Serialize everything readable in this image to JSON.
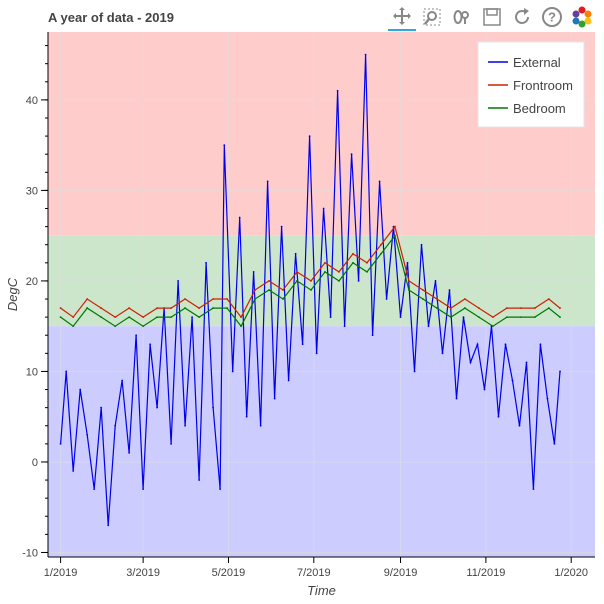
{
  "title": "A year of data - 2019",
  "toolbar": {
    "tools": [
      {
        "name": "pan-tool",
        "icon": "move-arrows-icon",
        "active": true
      },
      {
        "name": "box-zoom-tool",
        "icon": "box-zoom-icon",
        "active": false
      },
      {
        "name": "wheel-zoom-tool",
        "icon": "wheel-zoom-icon",
        "active": false
      },
      {
        "name": "save-tool",
        "icon": "save-disk-icon",
        "active": false
      },
      {
        "name": "reset-tool",
        "icon": "reset-icon",
        "active": false
      },
      {
        "name": "help-tool",
        "icon": "help-icon",
        "active": false
      },
      {
        "name": "bokeh-logo",
        "icon": "bokeh-logo-icon",
        "active": false
      }
    ],
    "accent_color": "#26aae1"
  },
  "chart_data": {
    "type": "line",
    "title": "A year of data - 2019",
    "xlabel": "Time",
    "ylabel": "DegC",
    "x_ticks": [
      "1/2019",
      "3/2019",
      "5/2019",
      "7/2019",
      "9/2019",
      "11/2019",
      "1/2020"
    ],
    "y_ticks": [
      -10,
      0,
      10,
      20,
      30,
      40
    ],
    "xlim": [
      "2018-12-23",
      "2020-01-18"
    ],
    "ylim": [
      -10.5,
      47.5
    ],
    "grid": true,
    "legend_position": "top-right",
    "bands": [
      {
        "from": 25,
        "to": 47.5,
        "color": "#ffcccc"
      },
      {
        "from": 15,
        "to": 25,
        "color": "#cce6cc"
      },
      {
        "from": -10.5,
        "to": 15,
        "color": "#ccccff"
      }
    ],
    "series": [
      {
        "name": "External",
        "color": "#0000ee",
        "x": [
          "2019-01-01",
          "2019-01-05",
          "2019-01-10",
          "2019-01-15",
          "2019-01-20",
          "2019-01-25",
          "2019-01-30",
          "2019-02-04",
          "2019-02-09",
          "2019-02-14",
          "2019-02-19",
          "2019-02-24",
          "2019-03-01",
          "2019-03-06",
          "2019-03-11",
          "2019-03-16",
          "2019-03-21",
          "2019-03-26",
          "2019-03-31",
          "2019-04-05",
          "2019-04-10",
          "2019-04-15",
          "2019-04-20",
          "2019-04-25",
          "2019-04-28",
          "2019-05-04",
          "2019-05-09",
          "2019-05-14",
          "2019-05-19",
          "2019-05-24",
          "2019-05-29",
          "2019-06-03",
          "2019-06-08",
          "2019-06-13",
          "2019-06-18",
          "2019-06-23",
          "2019-06-28",
          "2019-07-03",
          "2019-07-08",
          "2019-07-13",
          "2019-07-18",
          "2019-07-23",
          "2019-07-28",
          "2019-08-02",
          "2019-08-07",
          "2019-08-12",
          "2019-08-17",
          "2019-08-22",
          "2019-08-27",
          "2019-09-01",
          "2019-09-06",
          "2019-09-11",
          "2019-09-16",
          "2019-09-21",
          "2019-09-26",
          "2019-10-01",
          "2019-10-06",
          "2019-10-11",
          "2019-10-16",
          "2019-10-21",
          "2019-10-26",
          "2019-10-31",
          "2019-11-05",
          "2019-11-10",
          "2019-11-15",
          "2019-11-20",
          "2019-11-25",
          "2019-11-30",
          "2019-12-05",
          "2019-12-10",
          "2019-12-15",
          "2019-12-20",
          "2019-12-24"
        ],
        "values": [
          2,
          10,
          -1,
          8,
          3,
          -3,
          6,
          -7,
          4,
          9,
          1,
          14,
          -3,
          13,
          6,
          17,
          2,
          20,
          4,
          16,
          -2,
          22,
          6,
          -3,
          35,
          10,
          27,
          5,
          21,
          4,
          31,
          7,
          26,
          9,
          23,
          13,
          36,
          12,
          28,
          16,
          41,
          15,
          34,
          20,
          45,
          14,
          31,
          18,
          26,
          16,
          22,
          10,
          24,
          15,
          20,
          12,
          19,
          7,
          16,
          11,
          13,
          8,
          15,
          5,
          13,
          9,
          4,
          11,
          -3,
          13,
          7,
          2,
          10
        ]
      },
      {
        "name": "Frontroom",
        "color": "#cc2200",
        "x": [
          "2019-01-01",
          "2019-01-10",
          "2019-01-20",
          "2019-01-30",
          "2019-02-09",
          "2019-02-19",
          "2019-03-01",
          "2019-03-11",
          "2019-03-21",
          "2019-03-31",
          "2019-04-10",
          "2019-04-20",
          "2019-04-30",
          "2019-05-10",
          "2019-05-20",
          "2019-05-30",
          "2019-06-09",
          "2019-06-19",
          "2019-06-29",
          "2019-07-09",
          "2019-07-19",
          "2019-07-29",
          "2019-08-08",
          "2019-08-18",
          "2019-08-28",
          "2019-09-07",
          "2019-09-17",
          "2019-09-27",
          "2019-10-07",
          "2019-10-17",
          "2019-10-27",
          "2019-11-06",
          "2019-11-16",
          "2019-11-26",
          "2019-12-06",
          "2019-12-16",
          "2019-12-24"
        ],
        "values": [
          17,
          16,
          18,
          17,
          16,
          17,
          16,
          17,
          17,
          18,
          17,
          18,
          18,
          16,
          19,
          20,
          19,
          21,
          20,
          22,
          21,
          23,
          22,
          24,
          26,
          20,
          19,
          18,
          17,
          18,
          17,
          16,
          17,
          17,
          17,
          18,
          17
        ]
      },
      {
        "name": "Bedroom",
        "color": "#007700",
        "x": [
          "2019-01-01",
          "2019-01-10",
          "2019-01-20",
          "2019-01-30",
          "2019-02-09",
          "2019-02-19",
          "2019-03-01",
          "2019-03-11",
          "2019-03-21",
          "2019-03-31",
          "2019-04-10",
          "2019-04-20",
          "2019-04-30",
          "2019-05-10",
          "2019-05-20",
          "2019-05-30",
          "2019-06-09",
          "2019-06-19",
          "2019-06-29",
          "2019-07-09",
          "2019-07-19",
          "2019-07-29",
          "2019-08-08",
          "2019-08-18",
          "2019-08-28",
          "2019-09-07",
          "2019-09-17",
          "2019-09-27",
          "2019-10-07",
          "2019-10-17",
          "2019-10-27",
          "2019-11-06",
          "2019-11-16",
          "2019-11-26",
          "2019-12-06",
          "2019-12-16",
          "2019-12-24"
        ],
        "values": [
          16,
          15,
          17,
          16,
          15,
          16,
          15,
          16,
          16,
          17,
          16,
          17,
          17,
          15,
          18,
          19,
          18,
          20,
          19,
          21,
          20,
          22,
          21,
          23,
          25,
          19,
          18,
          17,
          16,
          17,
          16,
          15,
          16,
          16,
          16,
          17,
          16
        ]
      }
    ]
  }
}
